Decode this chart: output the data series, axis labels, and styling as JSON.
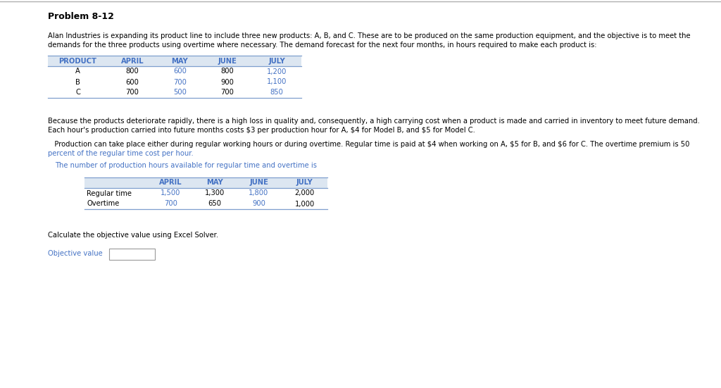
{
  "title": "Problem 8-12",
  "bg_color": "#ffffff",
  "top_line_color": "#b0b0b0",
  "paragraph1_line1": "Alan Industries is expanding its product line to include three new products: A, B, and C. These are to be produced on the same production equipment, and the objective is to meet the",
  "paragraph1_line2": "demands for the three products using overtime where necessary. The demand forecast for the next four months, in hours required to make each product is:",
  "table1_headers": [
    "PRODUCT",
    "APRIL",
    "MAY",
    "JUNE",
    "JULY"
  ],
  "table1_header_color": "#4472c4",
  "table1_rows": [
    [
      "A",
      "800",
      "600",
      "800",
      "1,200"
    ],
    [
      "B",
      "600",
      "700",
      "900",
      "1,100"
    ],
    [
      "C",
      "700",
      "500",
      "700",
      "850"
    ]
  ],
  "table1_may_col": 2,
  "table1_july_col": 4,
  "paragraph2_line1": "Because the products deteriorate rapidly, there is a high loss in quality and, consequently, a high carrying cost when a product is made and carried in inventory to meet future demand.",
  "paragraph2_line2": "Each hour's production carried into future months costs $3 per production hour for A, $4 for Model B, and $5 for Model C.",
  "paragraph3_line1": "   Production can take place either during regular working hours or during overtime. Regular time is paid at $4 when working on A, $5 for B, and $6 for C. The overtime premium is 50",
  "paragraph3_line2": "percent of the regular time cost per hour.",
  "paragraph4": "   The number of production hours available for regular time and overtime is",
  "table2_headers": [
    "",
    "APRIL",
    "MAY",
    "JUNE",
    "JULY"
  ],
  "table2_header_color": "#4472c4",
  "table2_rows": [
    [
      "Regular time",
      "1,500",
      "1,300",
      "1,800",
      "2,000"
    ],
    [
      "Overtime",
      "700",
      "650",
      "900",
      "1,000"
    ]
  ],
  "table2_april_col": 1,
  "table2_june_col": 3,
  "paragraph5": "Calculate the objective value using Excel Solver.",
  "objective_label": "Objective value",
  "objective_label_color": "#4472c4",
  "highlight_color": "#4472c4",
  "normal_color": "#000000",
  "table_border_color": "#7f9fce",
  "table_bg_header": "#dce6f1",
  "font_size_title": 9.0,
  "font_size_body": 7.2,
  "font_size_table": 7.2
}
